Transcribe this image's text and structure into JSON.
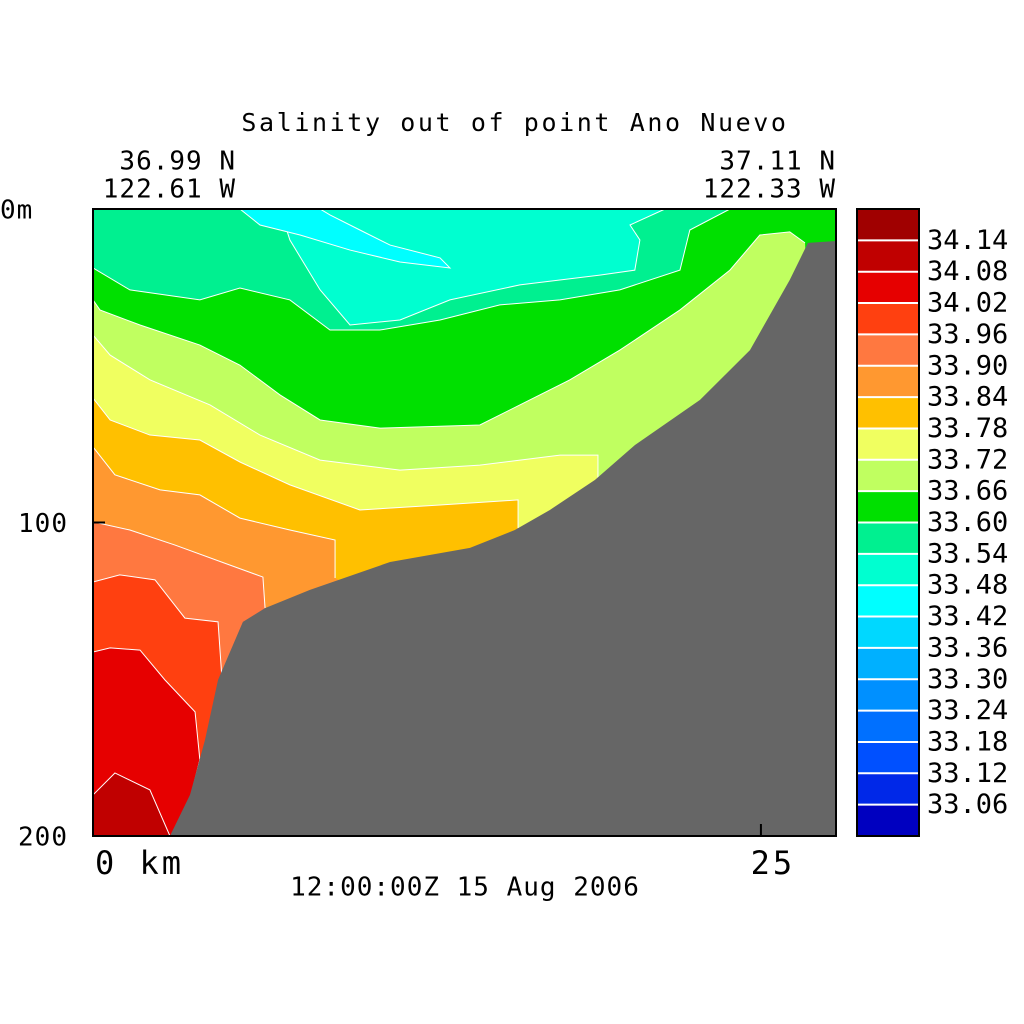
{
  "chart_data": {
    "type": "contour",
    "title": "Salinity out of point Ano Nuevo",
    "left_lat": "36.99 N",
    "left_lon": "122.61 W",
    "right_lat": "37.11 N",
    "right_lon": "122.33 W",
    "timestamp": "12:00:00Z  15 Aug 2006",
    "xlim": [
      0,
      27.81
    ],
    "xticks": [
      {
        "value": 0,
        "label": "0 km"
      },
      25
    ],
    "ylim": [
      0,
      200
    ],
    "yticks": [
      {
        "value": 0,
        "label": "0m"
      },
      100,
      200
    ],
    "colorbar": {
      "lim": [
        33.0,
        34.2
      ],
      "levels": [
        33.06,
        33.12,
        33.18,
        33.24,
        {
          "value": 33.3,
          "label": "33.30"
        },
        33.36,
        33.42,
        33.48,
        33.54,
        {
          "value": 33.6,
          "label": "33.60"
        },
        33.66,
        33.72,
        33.78,
        33.84,
        {
          "value": 33.9,
          "label": "33.90"
        },
        33.96,
        34.02,
        34.08,
        34.14
      ],
      "colors": [
        "#0000c0",
        "#0028e8",
        "#0050ff",
        "#0070ff",
        "#0090ff",
        "#00b0ff",
        "#00d8ff",
        "#00ffff",
        "#00ffd0",
        "#00f090",
        "#00e000",
        "#c0ff60",
        "#f0ff60",
        "#ffc000",
        "#ff9830",
        "#ff7840",
        "#ff4010",
        "#e60000",
        "#c00000",
        "#a00000"
      ]
    },
    "contours": [
      {
        "level": 34.08,
        "x": [
          0,
          0.82,
          2.13,
          2.88
        ],
        "y": [
          186.9,
          179.9,
          185.3,
          200
        ]
      },
      {
        "level": 34.02,
        "x": [
          0,
          0.64,
          1.76,
          2.69,
          3.82,
          4.0,
          3.63
        ],
        "y": [
          141.3,
          140,
          140.7,
          150.2,
          160.4,
          175.7,
          188.3
        ]
      },
      {
        "level": 33.96,
        "x": [
          0,
          1.0,
          2.32,
          3.44,
          4.68,
          4.83
        ],
        "y": [
          119,
          116.7,
          118.3,
          130.5,
          131.7,
          150.2
        ]
      },
      {
        "level": 33.9,
        "x": [
          0,
          1.38,
          3.07,
          5.13,
          6.36,
          6.44
        ],
        "y": [
          99.8,
          102.4,
          107.2,
          113.6,
          117.4,
          127.3
        ]
      },
      {
        "level": 33.84,
        "x": [
          0,
          0.82,
          2.51,
          4.0,
          5.5,
          7.37,
          9.06,
          9.06
        ],
        "y": [
          75.9,
          84.8,
          89.6,
          91.2,
          98.6,
          102.4,
          105.6,
          117.7
        ]
      },
      {
        "level": 33.78,
        "x": [
          0,
          0.64,
          2.13,
          4.0,
          5.5,
          7.37,
          9.99,
          12.99,
          15.91,
          15.91
        ],
        "y": [
          60.3,
          67.3,
          72.1,
          73.7,
          80.7,
          88.0,
          96.0,
          94.4,
          92.8,
          101.8
        ]
      },
      {
        "level": 33.72,
        "x": [
          0,
          0.64,
          2.13,
          4.38,
          6.25,
          8.5,
          11.49,
          14.48,
          17.48,
          18.9,
          18.9
        ],
        "y": [
          40.2,
          46.6,
          54.5,
          62.5,
          72.1,
          80.1,
          83.3,
          81.7,
          78.5,
          78.5,
          85.8
        ]
      },
      {
        "level": 33.66,
        "x": [
          0,
          0.26,
          1.76,
          4.0,
          5.5,
          7.0,
          8.5,
          10.74,
          14.48,
          16.35,
          17.85,
          19.72,
          21.97,
          23.84,
          24.96,
          26.08,
          26.65
        ],
        "y": [
          29,
          32.2,
          37,
          43.4,
          49.8,
          59.3,
          67.3,
          69.9,
          68.9,
          60.9,
          54.5,
          45,
          32.2,
          19.5,
          8.3,
          7.3,
          10.8
        ]
      },
      {
        "level": 33.6,
        "x": [
          0,
          1.38,
          4.0,
          5.5,
          7.37,
          8.87,
          10.74,
          12.99,
          15.23,
          17.48,
          19.72,
          21.97,
          22.34,
          23.84
        ],
        "y": [
          18.8,
          25.8,
          29,
          25.2,
          29,
          38.6,
          38.6,
          35.4,
          30.6,
          29,
          25.8,
          19.5,
          6.7,
          0
        ]
      },
      {
        "level": 33.54,
        "x": [
          7.0,
          7.37,
          8.5,
          9.62,
          11.49,
          13.36,
          15.98,
          18.97,
          20.28,
          20.47,
          20.1,
          21.41
        ],
        "y": [
          0,
          9.9,
          25.8,
          37,
          35.4,
          29,
          24.2,
          21.1,
          19.5,
          9.9,
          5.1,
          0
        ]
      },
      {
        "level": 33.48,
        "x": [
          5.5,
          6.25,
          7.75,
          9.62,
          11.49,
          13.36,
          12.99,
          11.12,
          9.99,
          8.87,
          8.5
        ],
        "y": [
          0,
          5.1,
          8.3,
          13.1,
          16.9,
          18.8,
          15.6,
          11.5,
          6.7,
          1.9,
          0
        ]
      }
    ],
    "topography": {
      "color": "#666666",
      "x": [
        2.88,
        3.63,
        4.19,
        4.68,
        5.61,
        6.44,
        8.12,
        11.12,
        14.11,
        15.79,
        17.1,
        18.79,
        20.28,
        22.72,
        24.59,
        26.08,
        26.76,
        27.81
      ],
      "y": [
        200,
        186.9,
        169.4,
        150.2,
        131.7,
        127.3,
        121.5,
        112.6,
        108.1,
        102.4,
        96,
        86.4,
        75.3,
        60.9,
        45,
        22.6,
        10.8,
        10.2
      ]
    }
  }
}
